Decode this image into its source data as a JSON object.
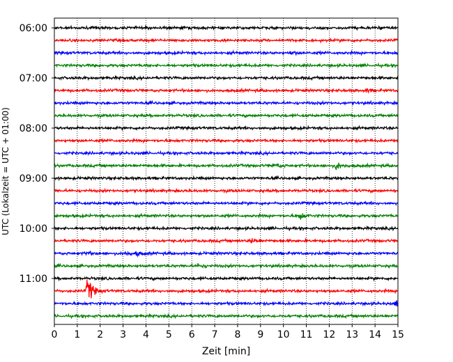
{
  "chart_data": {
    "type": "line",
    "title": "",
    "xlabel": "Zeit  [min]",
    "ylabel": "UTC (Lokalzeit = UTC + 01:00)",
    "xlim": [
      0,
      15
    ],
    "xticks": [
      "0",
      "1",
      "2",
      "3",
      "4",
      "5",
      "6",
      "7",
      "8",
      "9",
      "10",
      "11",
      "12",
      "13",
      "14",
      "15"
    ],
    "yticks": [
      {
        "label": "06:00",
        "trace": 0
      },
      {
        "label": "07:00",
        "trace": 4
      },
      {
        "label": "08:00",
        "trace": 8
      },
      {
        "label": "09:00",
        "trace": 12
      },
      {
        "label": "10:00",
        "trace": 16
      },
      {
        "label": "11:00",
        "trace": 20
      }
    ],
    "grid": {
      "x": true,
      "y": false,
      "style": "dotted"
    },
    "trace_start_times": [
      "06:00",
      "06:15",
      "06:30",
      "06:45",
      "07:00",
      "07:15",
      "07:30",
      "07:45",
      "08:00",
      "08:15",
      "08:30",
      "08:45",
      "09:00",
      "09:15",
      "09:30",
      "09:45",
      "10:00",
      "10:15",
      "10:30",
      "10:45",
      "11:00",
      "11:15",
      "11:30",
      "11:45"
    ],
    "trace_colors": [
      "#000000",
      "#ff0000",
      "#0000ff",
      "#008000"
    ],
    "events": [
      {
        "trace": 21,
        "time_min": 1.45,
        "amplitude": 4.5
      },
      {
        "trace": 15,
        "time_min": 10.7,
        "amplitude": 1.4
      },
      {
        "trace": 11,
        "time_min": 12.3,
        "amplitude": 1.3
      },
      {
        "trace": 11,
        "time_min": 9.6,
        "amplitude": 0.7
      },
      {
        "trace": 19,
        "time_min": 6.3,
        "amplitude": 0.6
      },
      {
        "trace": 17,
        "time_min": 8.6,
        "amplitude": 0.8
      },
      {
        "trace": 18,
        "time_min": 1.4,
        "amplitude": 0.7
      },
      {
        "trace": 18,
        "time_min": 3.1,
        "amplitude": 0.6
      },
      {
        "trace": 18,
        "time_min": 3.6,
        "amplitude": 0.6
      },
      {
        "trace": 22,
        "time_min": 14.9,
        "amplitude": 0.9
      },
      {
        "trace": 5,
        "time_min": 13.6,
        "amplitude": 0.6
      },
      {
        "trace": 2,
        "time_min": 10.3,
        "amplitude": 0.5
      }
    ]
  }
}
